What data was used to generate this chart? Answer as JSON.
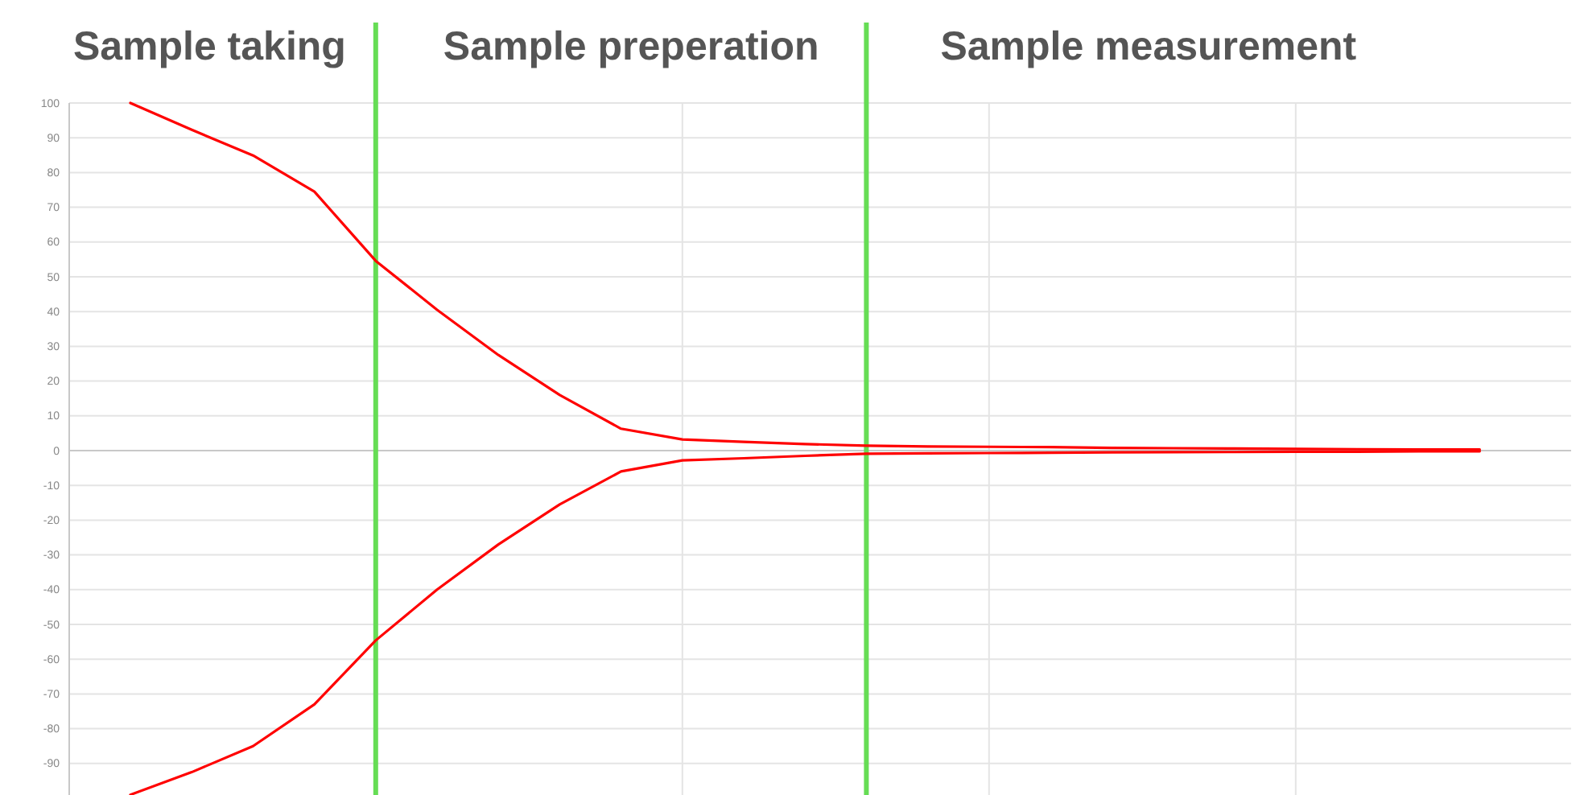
{
  "chart_data": {
    "type": "line",
    "categories": [
      null,
      null,
      null,
      null,
      null,
      null,
      null,
      null,
      null,
      null,
      null,
      null,
      null,
      null,
      null,
      null,
      null,
      null,
      null,
      null,
      null,
      null,
      null
    ],
    "series": [
      {
        "color": "#ff0000",
        "values": [
          100,
          92.3,
          84.9,
          74.5,
          54.6,
          40.5,
          27.5,
          16,
          6.3,
          3.2,
          2.5,
          1.9,
          1.4,
          1.2,
          1.1,
          1.0,
          0.8,
          0.7,
          0.6,
          0.5,
          0.4,
          0.35,
          0.3
        ]
      },
      {
        "color": "#ff0000",
        "values": [
          -99,
          -92.5,
          -85,
          -73,
          -54.6,
          -40,
          -27,
          -15.5,
          -6,
          -2.8,
          -2.2,
          -1.5,
          -0.9,
          -0.8,
          -0.7,
          -0.6,
          -0.5,
          -0.45,
          -0.4,
          -0.3,
          -0.3,
          -0.2,
          -0.2
        ]
      }
    ],
    "ylim": [
      -100,
      100
    ],
    "yticks": [
      -90,
      -80,
      -70,
      -60,
      -50,
      -40,
      -30,
      -20,
      -10,
      0,
      10,
      20,
      30,
      40,
      50,
      60,
      70,
      80,
      90,
      100
    ],
    "tick_labels": "y",
    "grid": true,
    "marker": "none",
    "line_style": "solid",
    "annotations": [
      "Sample taking",
      "Sample preperation",
      "Sample measurement"
    ]
  }
}
